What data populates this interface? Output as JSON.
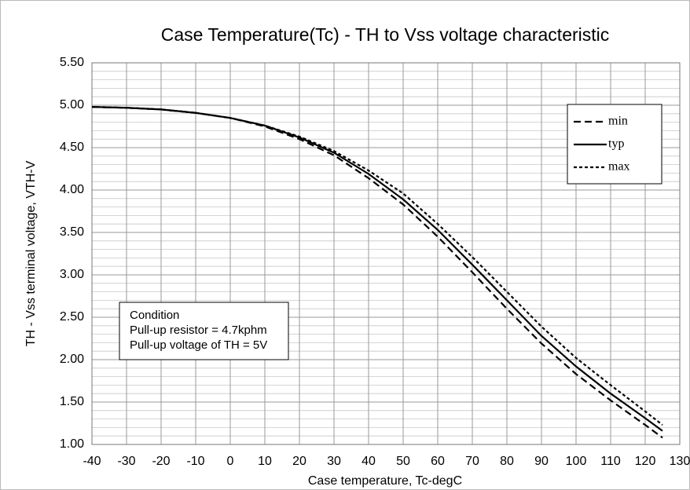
{
  "chart_data": {
    "type": "line",
    "title": "Case Temperature(Tc) - TH to Vss voltage characteristic",
    "x_label": "Case temperature, Tc-degC",
    "y_label": "TH - Vss terminal voltage, VTH-V",
    "annotation": [
      "Condition",
      "Pull-up resistor = 4.7kphm",
      "Pull-up voltage of TH = 5V"
    ],
    "x": [
      -40,
      -30,
      -20,
      -10,
      0,
      10,
      20,
      30,
      40,
      50,
      60,
      70,
      80,
      90,
      100,
      110,
      120,
      125
    ],
    "series": [
      {
        "name": "min",
        "color": "#000000",
        "dash": "long",
        "values": [
          4.98,
          4.97,
          4.95,
          4.91,
          4.85,
          4.75,
          4.6,
          4.41,
          4.14,
          3.83,
          3.45,
          3.03,
          2.6,
          2.19,
          1.83,
          1.52,
          1.23,
          1.08
        ]
      },
      {
        "name": "typ",
        "color": "#000000",
        "dash": "solid",
        "values": [
          4.98,
          4.97,
          4.95,
          4.91,
          4.85,
          4.76,
          4.62,
          4.44,
          4.19,
          3.89,
          3.53,
          3.12,
          2.7,
          2.28,
          1.92,
          1.6,
          1.31,
          1.16
        ]
      },
      {
        "name": "max",
        "color": "#000000",
        "dash": "short",
        "values": [
          4.98,
          4.97,
          4.95,
          4.91,
          4.85,
          4.76,
          4.63,
          4.46,
          4.23,
          3.96,
          3.6,
          3.21,
          2.8,
          2.39,
          2.02,
          1.7,
          1.39,
          1.23
        ]
      }
    ],
    "xlim": [
      -40,
      130
    ],
    "xticks": [
      -40,
      -30,
      -20,
      -10,
      0,
      10,
      20,
      30,
      40,
      50,
      60,
      70,
      80,
      90,
      100,
      110,
      120,
      130
    ],
    "ylim": [
      1,
      5.5
    ],
    "yticks": [
      {
        "value": 1,
        "label": "1.00"
      },
      {
        "value": 1.5,
        "label": "1.50"
      },
      {
        "value": 2,
        "label": "2.00"
      },
      {
        "value": 2.5,
        "label": "2.50"
      },
      {
        "value": 3,
        "label": "3.00"
      },
      {
        "value": 3.5,
        "label": "3.50"
      },
      {
        "value": 4,
        "label": "4.00"
      },
      {
        "value": 4.5,
        "label": "4.50"
      },
      {
        "value": 5,
        "label": "5.00"
      },
      {
        "value": 5.5,
        "label": "5.50"
      }
    ],
    "grid": true,
    "legend": "upper right"
  }
}
